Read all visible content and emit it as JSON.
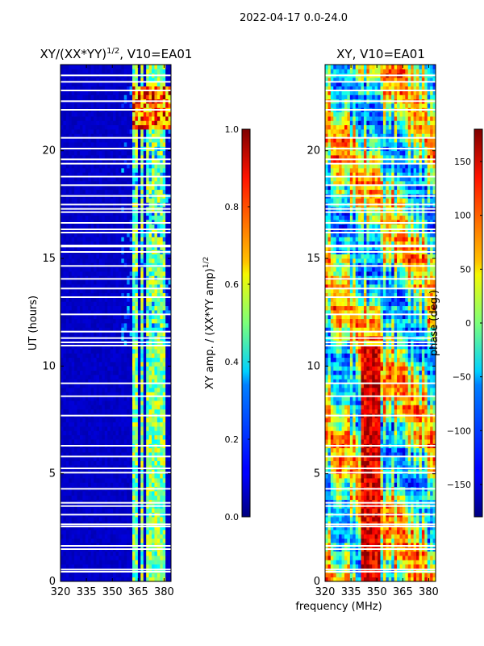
{
  "figure": {
    "suptitle": "2022-04-17 0.0-24.0"
  },
  "chart_data": [
    {
      "type": "heatmap",
      "title": "XY/(XX*YY)^{1/2}, V10=EA01",
      "title_main": "XY/(XX*YY)",
      "title_sup": "1/2",
      "title_suffix": ", V10=EA01",
      "xlabel": "",
      "ylabel": "UT (hours)",
      "xlim": [
        320,
        384
      ],
      "ylim": [
        0,
        24
      ],
      "xticks": [
        320,
        335,
        350,
        365,
        380
      ],
      "yticks": [
        0,
        5,
        10,
        15,
        20
      ],
      "colorbar": {
        "label": "XY amp. / (XX*YY amp)^{1/2}",
        "label_main": "XY amp. / (XX*YY amp)",
        "label_sup": "1/2",
        "range": [
          0.0,
          1.0
        ],
        "ticks": [
          "0.0",
          "0.2",
          "0.4",
          "0.6",
          "0.8",
          "1.0"
        ],
        "tick_values": [
          0.0,
          0.2,
          0.4,
          0.6,
          0.8,
          1.0
        ],
        "colormap": "jet"
      },
      "flagged_times_hours": [
        0.45,
        0.55,
        1.5,
        1.65,
        2.55,
        2.65,
        3.1,
        3.5,
        3.65,
        4.3,
        5.05,
        5.25,
        5.8,
        6.3,
        7.7,
        8.6,
        9.2,
        10.95,
        11.1,
        11.3,
        11.6,
        12.4,
        13.2,
        13.6,
        14.05,
        14.65,
        15.3,
        15.55,
        15.6,
        16.2,
        16.35,
        16.65,
        17.15,
        17.3,
        17.5,
        17.9,
        18.4,
        18.8,
        19.4,
        19.6,
        20.1,
        20.6,
        21.9,
        22.3,
        22.8,
        23.2,
        23.5
      ],
      "bright_channels_mhz": [
        363,
        367,
        370,
        373,
        376,
        379
      ]
    },
    {
      "type": "heatmap",
      "title": "XY, V10=EA01",
      "xlabel": "frequency (MHz)",
      "ylabel": "",
      "xlim": [
        320,
        384
      ],
      "ylim": [
        0,
        24
      ],
      "xticks": [
        320,
        335,
        350,
        365,
        380
      ],
      "yticks": [
        0,
        5,
        10,
        15,
        20
      ],
      "colorbar": {
        "label": "phase (deg.)",
        "range": [
          -180,
          180
        ],
        "ticks": [
          "−150",
          "−100",
          "−50",
          "0",
          "50",
          "100",
          "150"
        ],
        "tick_values": [
          -150,
          -100,
          -50,
          0,
          50,
          100,
          150
        ],
        "colormap": "jet"
      },
      "flagged_times_hours": [
        0.45,
        0.55,
        1.5,
        1.65,
        2.55,
        2.65,
        3.1,
        3.5,
        3.65,
        4.3,
        5.05,
        5.25,
        5.8,
        6.3,
        7.7,
        8.6,
        9.2,
        10.95,
        11.1,
        11.3,
        11.6,
        12.4,
        13.2,
        13.6,
        14.05,
        14.65,
        15.3,
        15.55,
        15.6,
        16.2,
        16.35,
        16.65,
        17.15,
        17.3,
        17.5,
        17.9,
        18.4,
        18.8,
        19.4,
        19.6,
        20.1,
        20.6,
        21.9,
        22.3,
        22.8,
        23.2,
        23.5
      ]
    }
  ]
}
